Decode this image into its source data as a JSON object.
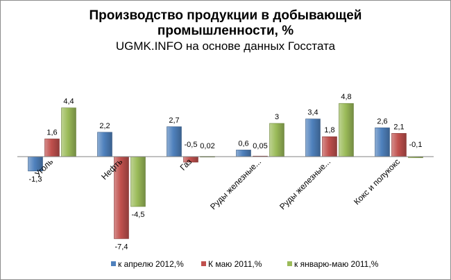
{
  "chart_data": {
    "type": "bar",
    "title_lines": [
      "Производство продукции в добывающей",
      "промышленности, %"
    ],
    "subtitle": "UGMK.INFO на основе данных Госстата",
    "categories": [
      "Уголь",
      "Нефть",
      "Газ",
      "Руды железные...",
      "Руды железные...",
      "Кокс и полукокс"
    ],
    "series": [
      {
        "name": "к апрелю 2012,%",
        "color": "#4f81bd",
        "values": [
          -1.3,
          2.2,
          2.7,
          0.6,
          3.4,
          2.6
        ],
        "labels": [
          "-1,3",
          "2,2",
          "2,7",
          "0,6",
          "3,4",
          "2,6"
        ]
      },
      {
        "name": "К маю 2011,%",
        "color": "#c0504d",
        "values": [
          1.6,
          -7.4,
          -0.5,
          0.05,
          1.8,
          2.1
        ],
        "labels": [
          "1,6",
          "-7,4",
          "-0,5",
          "0,05",
          "1,8",
          "2,1"
        ]
      },
      {
        "name": "к январю-маю 2011,%",
        "color": "#9bbb59",
        "values": [
          4.4,
          -4.5,
          0.02,
          3,
          4.8,
          -0.1
        ],
        "labels": [
          "4,4",
          "-4,5",
          "0,02",
          "3",
          "4,8",
          "-0,1"
        ]
      }
    ],
    "legend_position": "bottom",
    "grid": false
  }
}
